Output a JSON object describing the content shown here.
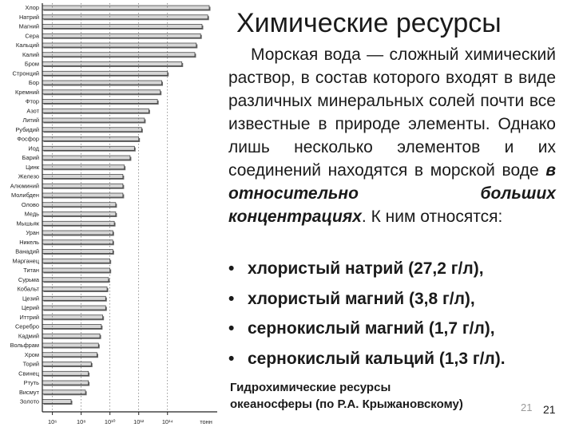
{
  "slide": {
    "title": "Химические ресурсы",
    "paragraph": {
      "first_line": "Морская вода — сложный",
      "body": "химический раствор, в состав которого входят в виде различных минеральных солей почти все известные в природе элементы. Однако лишь несколько элементов и их соединений находятся в морской воде ",
      "emphasis": "в относительно больших концентрациях",
      "ending": ". К ним относятся:"
    },
    "bullet_symbol": "•",
    "bullets": [
      "хлористый натрий (27,2 г/л),",
      "хлористый магний (3,8 г/л),",
      "сернокислый магний (1,7 г/л),",
      "сернокислый кальций (1,3 г/л)."
    ],
    "caption_line1": "Гидрохимические ресурсы",
    "caption_line2": "океаносферы (по Р.А. Крыжановскому)",
    "ghost_page_number": "21",
    "page_number": "21"
  },
  "chart_data": {
    "type": "bar",
    "orientation": "horizontal",
    "x_scale": "log",
    "x_unit": "тонн",
    "x_tick_labels": [
      "10⁶",
      "10⁸",
      "10¹⁰",
      "10¹²",
      "10¹⁴",
      "тонн"
    ],
    "x_tick_exponents": [
      6,
      8,
      10,
      12,
      14
    ],
    "xlim_exponent": [
      5.3,
      17.4
    ],
    "categories": [
      "Хлор",
      "Натрий",
      "Магний",
      "Сера",
      "Кальций",
      "Калий",
      "Бром",
      "Стронций",
      "Бор",
      "Кремний",
      "Фтор",
      "Азот",
      "Литий",
      "Рубидий",
      "Фосфор",
      "Иод",
      "Барий",
      "Цинк",
      "Железо",
      "Алюминий",
      "Молибден",
      "Олово",
      "Медь",
      "Мышьяк",
      "Уран",
      "Никель",
      "Ванадий",
      "Марганец",
      "Титан",
      "Сурьма",
      "Кобальт",
      "Цезий",
      "Церий",
      "Иттрий",
      "Серебро",
      "Кадмий",
      "Вольфрам",
      "Хром",
      "Торий",
      "Свинец",
      "Ртуть",
      "Висмут",
      "Золото"
    ],
    "values_log10_tonnes": [
      16.9,
      16.8,
      16.4,
      16.3,
      16.0,
      15.9,
      15.0,
      14.0,
      13.6,
      13.5,
      13.3,
      12.7,
      12.4,
      12.2,
      12.0,
      11.7,
      11.4,
      11.0,
      10.9,
      10.9,
      10.9,
      10.4,
      10.4,
      10.3,
      10.2,
      10.2,
      10.2,
      10.0,
      10.0,
      9.9,
      9.8,
      9.7,
      9.7,
      9.5,
      9.4,
      9.3,
      9.2,
      9.1,
      8.7,
      8.5,
      8.5,
      8.3,
      7.3
    ],
    "bar_color": "#d7d7d7",
    "bar_edge_color": "#333333"
  }
}
